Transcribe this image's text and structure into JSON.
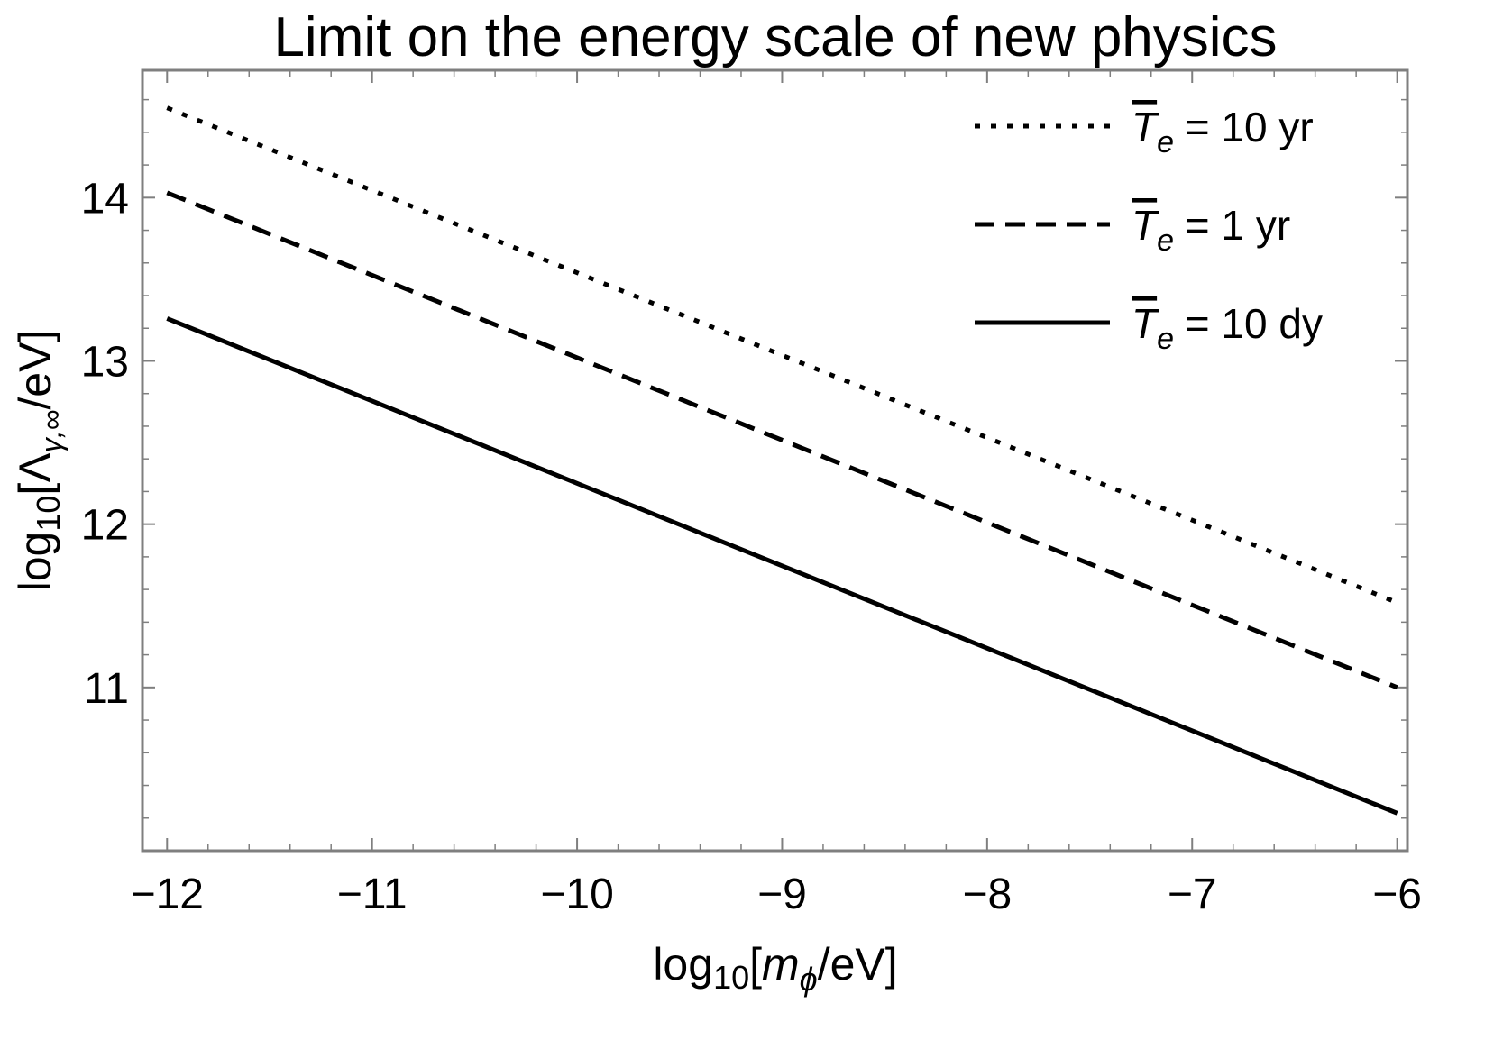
{
  "chart_data": {
    "type": "line",
    "title": "Limit on the energy scale of new physics",
    "xlabel": "log10[mϕ/eV]",
    "ylabel": "log10[Λγ,∞/eV]",
    "xlabel_parts": {
      "pre": "log",
      "sub": "10",
      "mid": "[",
      "var": "m",
      "varsub": "ϕ",
      "post": "/eV]"
    },
    "ylabel_parts": {
      "pre": "log",
      "sub": "10",
      "mid": "[Λ",
      "varsub": "γ,∞",
      "post": "/eV]"
    },
    "xlim": [
      -12.12,
      -5.95
    ],
    "ylim": [
      10.0,
      14.78
    ],
    "x_ticks": [
      -12,
      -11,
      -10,
      -9,
      -8,
      -7,
      -6
    ],
    "x_tick_labels": [
      "−12",
      "−11",
      "−10",
      "−9",
      "−8",
      "−7",
      "−6"
    ],
    "y_ticks": [
      11,
      12,
      13,
      14
    ],
    "y_tick_labels": [
      "11",
      "12",
      "13",
      "14"
    ],
    "grid": false,
    "legend_position": "top-right",
    "x": [
      -12,
      -6
    ],
    "series": [
      {
        "name": "T̄e = 10 yr",
        "legend_var": "T",
        "legend_sub": "e",
        "legend_rest": " = 10 yr",
        "style": "dotted",
        "values": [
          14.55,
          11.52
        ]
      },
      {
        "name": "T̄e = 1 yr",
        "legend_var": "T",
        "legend_sub": "e",
        "legend_rest": " = 1 yr",
        "style": "dashed",
        "values": [
          14.03,
          11.0
        ]
      },
      {
        "name": "T̄e = 10 dy",
        "legend_var": "T",
        "legend_sub": "e",
        "legend_rest": " = 10 dy",
        "style": "solid",
        "values": [
          13.26,
          10.23
        ]
      }
    ]
  }
}
